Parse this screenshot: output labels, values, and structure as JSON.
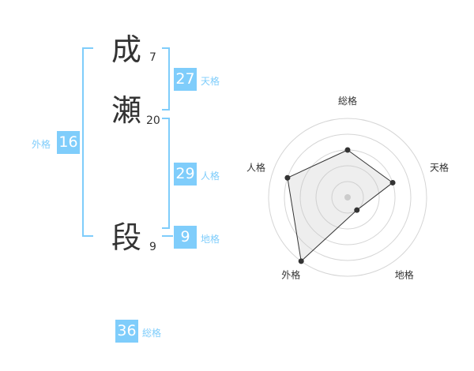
{
  "name_chars": [
    {
      "char": "成",
      "strokes": "7"
    },
    {
      "char": "瀬",
      "strokes": "20"
    },
    {
      "char": "段",
      "strokes": "9"
    }
  ],
  "kaku": {
    "tenkaku": {
      "value": "27",
      "label": "天格"
    },
    "jinkaku": {
      "value": "29",
      "label": "人格"
    },
    "chikaku": {
      "value": "9",
      "label": "地格"
    },
    "gaikaku": {
      "value": "16",
      "label": "外格"
    },
    "soukaku": {
      "value": "36",
      "label": "総格"
    }
  },
  "accent_color": "#7fcdfb",
  "chart_data": {
    "type": "radar",
    "axes": [
      "総格",
      "天格",
      "地格",
      "外格",
      "人格"
    ],
    "values": [
      3,
      3,
      1,
      5,
      4
    ],
    "range": [
      0,
      5
    ],
    "rings": 5
  }
}
